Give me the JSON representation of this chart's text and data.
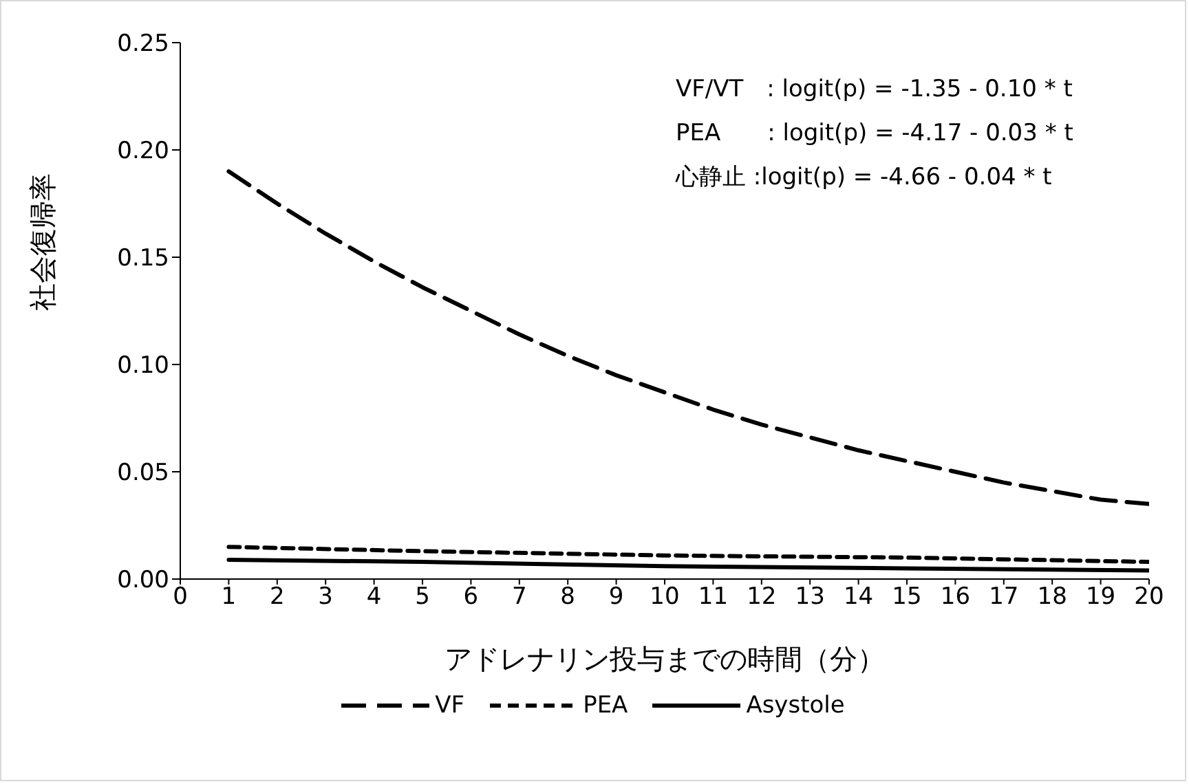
{
  "chart_data": {
    "type": "line",
    "xlabel": "アドレナリン投与までの時間（分）",
    "ylabel": "社会復帰率",
    "annotations": [
      "VF/VT　: logit(p) = -1.35 - 0.10 * t",
      "PEA　　: logit(p) = -4.17 - 0.03 * t",
      "心静止 :logit(p) = -4.66 - 0.04 * t"
    ],
    "series": [
      {
        "name": "VF",
        "color": "#000000",
        "line_style": "dashed",
        "x": [
          1,
          2,
          3,
          4,
          5,
          6,
          7,
          8,
          9,
          10,
          11,
          12,
          13,
          14,
          15,
          16,
          17,
          18,
          19,
          20
        ],
        "values": [
          0.19,
          0.175,
          0.161,
          0.148,
          0.136,
          0.125,
          0.114,
          0.104,
          0.095,
          0.087,
          0.079,
          0.072,
          0.066,
          0.06,
          0.055,
          0.05,
          0.045,
          0.041,
          0.037,
          0.035
        ]
      },
      {
        "name": "PEA",
        "color": "#000000",
        "line_style": "dotted",
        "x": [
          1,
          5,
          10,
          15,
          20
        ],
        "values": [
          0.015,
          0.013,
          0.011,
          0.01,
          0.008
        ]
      },
      {
        "name": "Asystole",
        "color": "#000000",
        "line_style": "solid",
        "x": [
          1,
          5,
          10,
          15,
          20
        ],
        "values": [
          0.009,
          0.008,
          0.006,
          0.005,
          0.004
        ]
      }
    ],
    "xlim": [
      0,
      20
    ],
    "xticks": [
      0,
      1,
      2,
      3,
      4,
      5,
      6,
      7,
      8,
      9,
      10,
      11,
      12,
      13,
      14,
      15,
      16,
      17,
      18,
      19,
      20
    ],
    "ylim": [
      0,
      0.25
    ],
    "yticks": [
      {
        "value": 0,
        "label": "0.00"
      },
      {
        "value": 0.05,
        "label": "0.05"
      },
      {
        "value": 0.1,
        "label": "0.10"
      },
      {
        "value": 0.15,
        "label": "0.15"
      },
      {
        "value": 0.2,
        "label": "0.20"
      },
      {
        "value": 0.25,
        "label": "0.25"
      }
    ],
    "grid": false,
    "legend": "bottom",
    "marker": "none"
  }
}
